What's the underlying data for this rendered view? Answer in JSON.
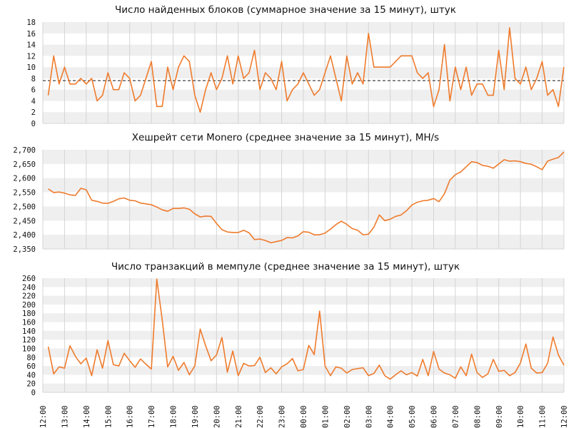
{
  "theme": {
    "line_color": "#ef7b2c",
    "band_color": "#efefef",
    "grid_color": "#d4d4d4",
    "ref_line_color": "#111111"
  },
  "x_axis": {
    "start": "12:00",
    "interval_minutes": 15,
    "tick_labels": [
      "12:00",
      "13:00",
      "14:00",
      "15:00",
      "16:00",
      "17:00",
      "18:00",
      "19:00",
      "20:00",
      "21:00",
      "22:00",
      "23:00",
      "00:00",
      "01:00",
      "02:00",
      "03:00",
      "04:00",
      "05:00",
      "06:00",
      "07:00",
      "08:00",
      "09:00",
      "10:00",
      "11:00",
      "12:00"
    ]
  },
  "chart_data": [
    {
      "type": "line",
      "title": "Число найденных блоков (суммарное значение за 15 минут), штук",
      "ylim": [
        0,
        18
      ],
      "yticks": [
        0,
        2,
        4,
        6,
        8,
        10,
        12,
        14,
        16,
        18
      ],
      "ytick_labels": [
        "0",
        "2",
        "4",
        "6",
        "8",
        "10",
        "12",
        "14",
        "16",
        "18"
      ],
      "reference_line": 7.6,
      "reference_style": "dashed",
      "grid": true,
      "series": [
        {
          "values": [
            5,
            12,
            7,
            10,
            7,
            7,
            8,
            7,
            8,
            4,
            5,
            9,
            6,
            6,
            9,
            8,
            4,
            5,
            8,
            11,
            3,
            3,
            10,
            6,
            10,
            12,
            11,
            5,
            2,
            6,
            9,
            6,
            8,
            12,
            7,
            12,
            8,
            9,
            13,
            6,
            9,
            8,
            6,
            11,
            4,
            6,
            7,
            9,
            7,
            5,
            6,
            9,
            12,
            8,
            4,
            12,
            7,
            9,
            7,
            16,
            10,
            10,
            10,
            10,
            11,
            12,
            12,
            12,
            9,
            8,
            9,
            3,
            6,
            14,
            4,
            10,
            6,
            10,
            5,
            7,
            7,
            5,
            5,
            13,
            6,
            17,
            8,
            7,
            10,
            6,
            8,
            11,
            5,
            6,
            3,
            10
          ]
        }
      ]
    },
    {
      "type": "line",
      "title": "Хешрейт сети Monero (среднее значение за 15 минут), MH/s",
      "ylim": [
        2350,
        2700
      ],
      "yticks": [
        2350,
        2400,
        2450,
        2500,
        2550,
        2600,
        2650,
        2700
      ],
      "ytick_labels": [
        "2,350",
        "2,400",
        "2,450",
        "2,500",
        "2,550",
        "2,600",
        "2,650",
        "2,700"
      ],
      "grid": true,
      "series": [
        {
          "values": [
            2562,
            2549,
            2551,
            2547,
            2541,
            2539,
            2564,
            2559,
            2522,
            2518,
            2512,
            2511,
            2518,
            2527,
            2530,
            2522,
            2520,
            2512,
            2509,
            2506,
            2498,
            2488,
            2483,
            2493,
            2493,
            2495,
            2490,
            2474,
            2463,
            2466,
            2465,
            2440,
            2418,
            2410,
            2408,
            2408,
            2416,
            2407,
            2383,
            2385,
            2380,
            2372,
            2376,
            2380,
            2390,
            2389,
            2396,
            2411,
            2409,
            2400,
            2400,
            2406,
            2420,
            2436,
            2448,
            2437,
            2422,
            2416,
            2400,
            2402,
            2427,
            2470,
            2450,
            2455,
            2465,
            2470,
            2485,
            2505,
            2515,
            2520,
            2522,
            2528,
            2517,
            2545,
            2593,
            2612,
            2622,
            2640,
            2658,
            2655,
            2645,
            2642,
            2635,
            2650,
            2665,
            2660,
            2661,
            2658,
            2652,
            2649,
            2640,
            2630,
            2660,
            2667,
            2673,
            2692
          ]
        }
      ]
    },
    {
      "type": "line",
      "title": "Число транзакций в мемпуле (среднее значение за 15 минут), штук",
      "ylim": [
        0,
        260
      ],
      "yticks": [
        0,
        20,
        40,
        60,
        80,
        100,
        120,
        140,
        160,
        180,
        200,
        220,
        240,
        260
      ],
      "ytick_labels": [
        "0",
        "20",
        "40",
        "60",
        "80",
        "100",
        "120",
        "140",
        "160",
        "180",
        "200",
        "220",
        "240",
        "260"
      ],
      "grid": true,
      "series": [
        {
          "values": [
            104,
            42,
            58,
            55,
            106,
            82,
            65,
            78,
            38,
            97,
            55,
            118,
            63,
            60,
            89,
            72,
            57,
            76,
            64,
            53,
            258,
            165,
            58,
            82,
            50,
            68,
            40,
            60,
            144,
            106,
            72,
            85,
            125,
            46,
            94,
            38,
            66,
            60,
            61,
            80,
            45,
            56,
            42,
            58,
            65,
            77,
            49,
            52,
            107,
            86,
            185,
            60,
            38,
            58,
            55,
            44,
            52,
            54,
            56,
            38,
            43,
            62,
            38,
            30,
            40,
            49,
            40,
            45,
            37,
            75,
            38,
            93,
            53,
            44,
            40,
            32,
            58,
            38,
            87,
            45,
            34,
            42,
            75,
            48,
            50,
            38,
            45,
            67,
            110,
            55,
            44,
            45,
            66,
            126,
            85,
            62
          ]
        }
      ]
    }
  ]
}
